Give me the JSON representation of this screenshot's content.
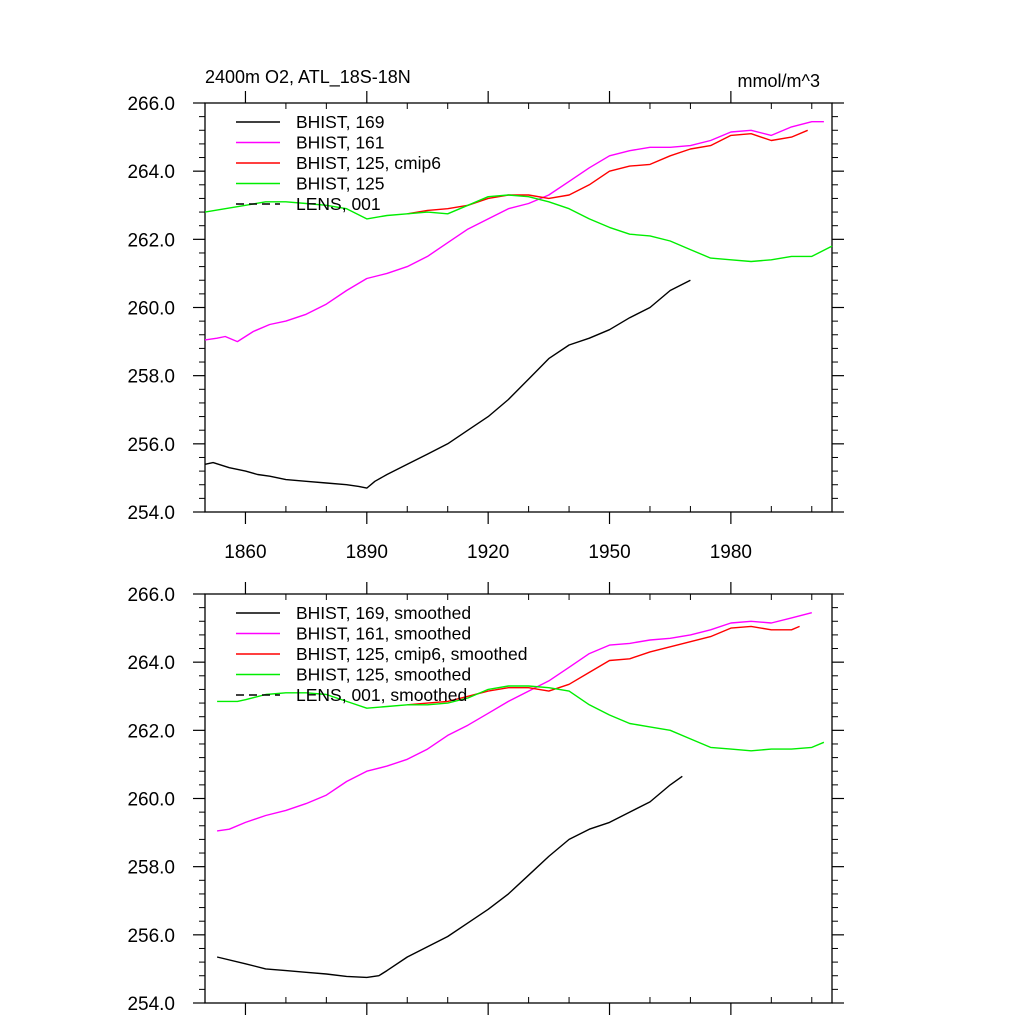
{
  "chart_data": [
    {
      "type": "line",
      "title_left": "2400m O2, ATL_18S-18N",
      "title_right": "mmol/m^3",
      "xlabel": "",
      "ylabel": "",
      "xlim": [
        1850,
        2005
      ],
      "ylim": [
        254,
        266
      ],
      "x_ticks": [
        1860,
        1890,
        1920,
        1950,
        1980
      ],
      "x_tick_labels": [
        "1860",
        "1890",
        "1920",
        "1950",
        "1980"
      ],
      "show_x_tick_labels": true,
      "y_ticks": [
        254,
        256,
        258,
        260,
        262,
        264,
        266
      ],
      "y_tick_labels": [
        "254.0",
        "256.0",
        "258.0",
        "260.0",
        "262.0",
        "264.0",
        "266.0"
      ],
      "legend_position": "top-left",
      "series": [
        {
          "name": "BHIST, 169",
          "color": "#000000",
          "dash": "solid",
          "x": [
            1850,
            1852,
            1856,
            1860,
            1863,
            1866,
            1870,
            1875,
            1880,
            1885,
            1888,
            1890,
            1892,
            1895,
            1900,
            1905,
            1910,
            1915,
            1920,
            1925,
            1930,
            1935,
            1940,
            1945,
            1950,
            1955,
            1960,
            1965,
            1970
          ],
          "y": [
            255.4,
            255.45,
            255.3,
            255.2,
            255.1,
            255.05,
            254.95,
            254.9,
            254.85,
            254.8,
            254.75,
            254.7,
            254.9,
            255.1,
            255.4,
            255.7,
            256.0,
            256.4,
            256.8,
            257.3,
            257.9,
            258.5,
            258.9,
            259.1,
            259.35,
            259.7,
            260.0,
            260.5,
            260.8
          ]
        },
        {
          "name": "BHIST, 161",
          "color": "#ff00ff",
          "dash": "solid",
          "x": [
            1850,
            1853,
            1855,
            1858,
            1862,
            1866,
            1870,
            1875,
            1880,
            1885,
            1890,
            1895,
            1900,
            1905,
            1910,
            1915,
            1920,
            1925,
            1930,
            1935,
            1940,
            1945,
            1950,
            1955,
            1960,
            1965,
            1970,
            1975,
            1980,
            1985,
            1990,
            1995,
            2000,
            2003
          ],
          "y": [
            259.05,
            259.1,
            259.15,
            259.0,
            259.3,
            259.5,
            259.6,
            259.8,
            260.1,
            260.5,
            260.85,
            261.0,
            261.2,
            261.5,
            261.9,
            262.3,
            262.6,
            262.9,
            263.05,
            263.3,
            263.7,
            264.1,
            264.45,
            264.6,
            264.7,
            264.7,
            264.75,
            264.9,
            265.15,
            265.2,
            265.05,
            265.3,
            265.45,
            265.45
          ]
        },
        {
          "name": "BHIST, 125, cmip6",
          "color": "#ff0000",
          "dash": "solid",
          "x": [
            1900,
            1905,
            1910,
            1915,
            1920,
            1925,
            1930,
            1935,
            1940,
            1945,
            1950,
            1955,
            1960,
            1965,
            1970,
            1975,
            1980,
            1985,
            1990,
            1995,
            1999
          ],
          "y": [
            262.75,
            262.85,
            262.9,
            263.0,
            263.2,
            263.3,
            263.3,
            263.2,
            263.3,
            263.6,
            264.0,
            264.15,
            264.2,
            264.45,
            264.65,
            264.75,
            265.05,
            265.1,
            264.9,
            265.0,
            265.2
          ]
        },
        {
          "name": "BHIST, 125",
          "color": "#00ee00",
          "dash": "solid",
          "x": [
            1850,
            1855,
            1860,
            1865,
            1870,
            1875,
            1880,
            1885,
            1890,
            1895,
            1900,
            1905,
            1910,
            1915,
            1920,
            1925,
            1930,
            1935,
            1940,
            1945,
            1950,
            1955,
            1960,
            1965,
            1970,
            1975,
            1980,
            1985,
            1990,
            1995,
            2000,
            2005
          ],
          "y": [
            262.8,
            262.9,
            263.0,
            263.1,
            263.1,
            263.05,
            263.0,
            262.9,
            262.6,
            262.7,
            262.75,
            262.8,
            262.75,
            263.0,
            263.25,
            263.3,
            263.25,
            263.1,
            262.9,
            262.6,
            262.35,
            262.15,
            262.1,
            261.95,
            261.7,
            261.45,
            261.4,
            261.35,
            261.4,
            261.5,
            261.5,
            261.8
          ]
        },
        {
          "name": "LENS, 001",
          "color": "#000000",
          "dash": "dashed",
          "x": [],
          "y": []
        }
      ]
    },
    {
      "type": "line",
      "title_left": "",
      "title_right": "",
      "xlabel": "",
      "ylabel": "",
      "xlim": [
        1850,
        2005
      ],
      "ylim": [
        254,
        266
      ],
      "x_ticks": [
        1860,
        1890,
        1920,
        1950,
        1980
      ],
      "x_tick_labels": [],
      "show_x_tick_labels": false,
      "y_ticks": [
        254,
        256,
        258,
        260,
        262,
        264,
        266
      ],
      "y_tick_labels": [
        "254.0",
        "256.0",
        "258.0",
        "260.0",
        "262.0",
        "264.0",
        "266.0"
      ],
      "legend_position": "top-left",
      "series": [
        {
          "name": "BHIST, 169, smoothed",
          "color": "#000000",
          "dash": "solid",
          "x": [
            1853,
            1860,
            1865,
            1870,
            1875,
            1880,
            1885,
            1890,
            1893,
            1895,
            1900,
            1905,
            1910,
            1915,
            1920,
            1925,
            1930,
            1935,
            1940,
            1945,
            1950,
            1955,
            1960,
            1965,
            1968
          ],
          "y": [
            255.35,
            255.15,
            255.0,
            254.95,
            254.9,
            254.85,
            254.78,
            254.75,
            254.8,
            254.95,
            255.35,
            255.65,
            255.95,
            256.35,
            256.75,
            257.2,
            257.75,
            258.3,
            258.8,
            259.1,
            259.3,
            259.6,
            259.9,
            260.4,
            260.65
          ]
        },
        {
          "name": "BHIST, 161, smoothed",
          "color": "#ff00ff",
          "dash": "solid",
          "x": [
            1853,
            1856,
            1860,
            1865,
            1870,
            1875,
            1880,
            1885,
            1890,
            1895,
            1900,
            1905,
            1910,
            1915,
            1920,
            1925,
            1930,
            1935,
            1940,
            1945,
            1950,
            1955,
            1960,
            1965,
            1970,
            1975,
            1980,
            1985,
            1990,
            1995,
            2000
          ],
          "y": [
            259.05,
            259.1,
            259.3,
            259.5,
            259.65,
            259.85,
            260.1,
            260.5,
            260.8,
            260.95,
            261.15,
            261.45,
            261.85,
            262.15,
            262.5,
            262.85,
            263.15,
            263.45,
            263.85,
            264.25,
            264.5,
            264.55,
            264.65,
            264.7,
            264.8,
            264.95,
            265.15,
            265.2,
            265.15,
            265.3,
            265.45
          ]
        },
        {
          "name": "BHIST, 125, cmip6, smoothed",
          "color": "#ff0000",
          "dash": "solid",
          "x": [
            1900,
            1905,
            1910,
            1915,
            1920,
            1925,
            1930,
            1935,
            1940,
            1945,
            1950,
            1955,
            1960,
            1965,
            1970,
            1975,
            1980,
            1985,
            1990,
            1995,
            1997
          ],
          "y": [
            262.75,
            262.8,
            262.85,
            263.0,
            263.15,
            263.25,
            263.25,
            263.15,
            263.35,
            263.7,
            264.05,
            264.1,
            264.3,
            264.45,
            264.6,
            264.75,
            265.0,
            265.05,
            264.95,
            264.95,
            265.05
          ]
        },
        {
          "name": "BHIST, 125, smoothed",
          "color": "#00ee00",
          "dash": "solid",
          "x": [
            1853,
            1858,
            1860,
            1865,
            1870,
            1875,
            1880,
            1885,
            1890,
            1895,
            1900,
            1905,
            1910,
            1915,
            1920,
            1925,
            1930,
            1935,
            1940,
            1945,
            1950,
            1955,
            1960,
            1965,
            1970,
            1975,
            1980,
            1985,
            1990,
            1995,
            2000,
            2003
          ],
          "y": [
            262.85,
            262.85,
            262.9,
            263.05,
            263.1,
            263.1,
            263.05,
            262.85,
            262.65,
            262.7,
            262.75,
            262.75,
            262.8,
            262.95,
            263.2,
            263.3,
            263.3,
            263.25,
            263.15,
            262.75,
            262.45,
            262.2,
            262.1,
            262.0,
            261.75,
            261.5,
            261.45,
            261.4,
            261.45,
            261.45,
            261.5,
            261.65
          ]
        },
        {
          "name": "LENS, 001, smoothed",
          "color": "#000000",
          "dash": "dashed",
          "x": [],
          "y": []
        }
      ]
    }
  ]
}
